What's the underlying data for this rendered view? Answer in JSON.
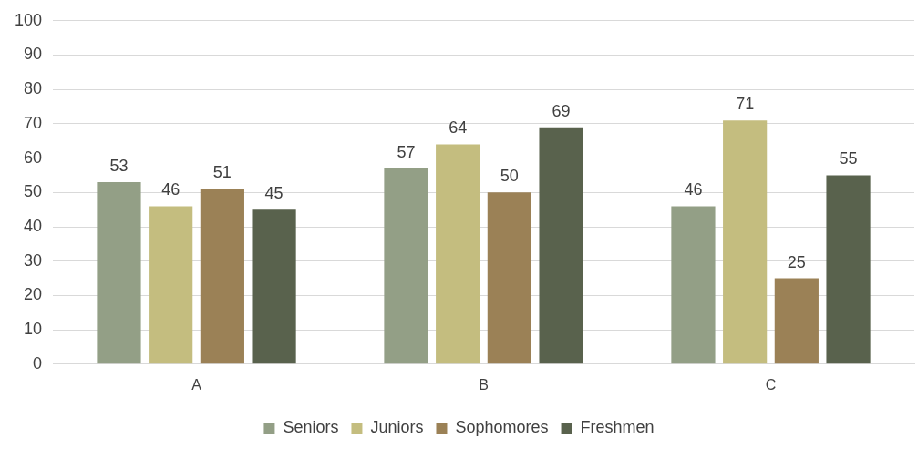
{
  "chart_data": {
    "type": "bar",
    "categories": [
      "A",
      "B",
      "C"
    ],
    "series": [
      {
        "name": "Seniors",
        "color": "#939f86",
        "values": [
          53,
          57,
          46
        ]
      },
      {
        "name": "Juniors",
        "color": "#c4bd7f",
        "values": [
          46,
          64,
          71
        ]
      },
      {
        "name": "Sophomores",
        "color": "#9b8156",
        "values": [
          51,
          50,
          25
        ]
      },
      {
        "name": "Freshmen",
        "color": "#59624d",
        "values": [
          45,
          69,
          55
        ]
      }
    ],
    "ylim": [
      0,
      100
    ],
    "yticks": [
      0,
      10,
      20,
      30,
      40,
      50,
      60,
      70,
      80,
      90,
      100
    ],
    "grid": "y",
    "legend": "bottom",
    "data_labels": true
  }
}
